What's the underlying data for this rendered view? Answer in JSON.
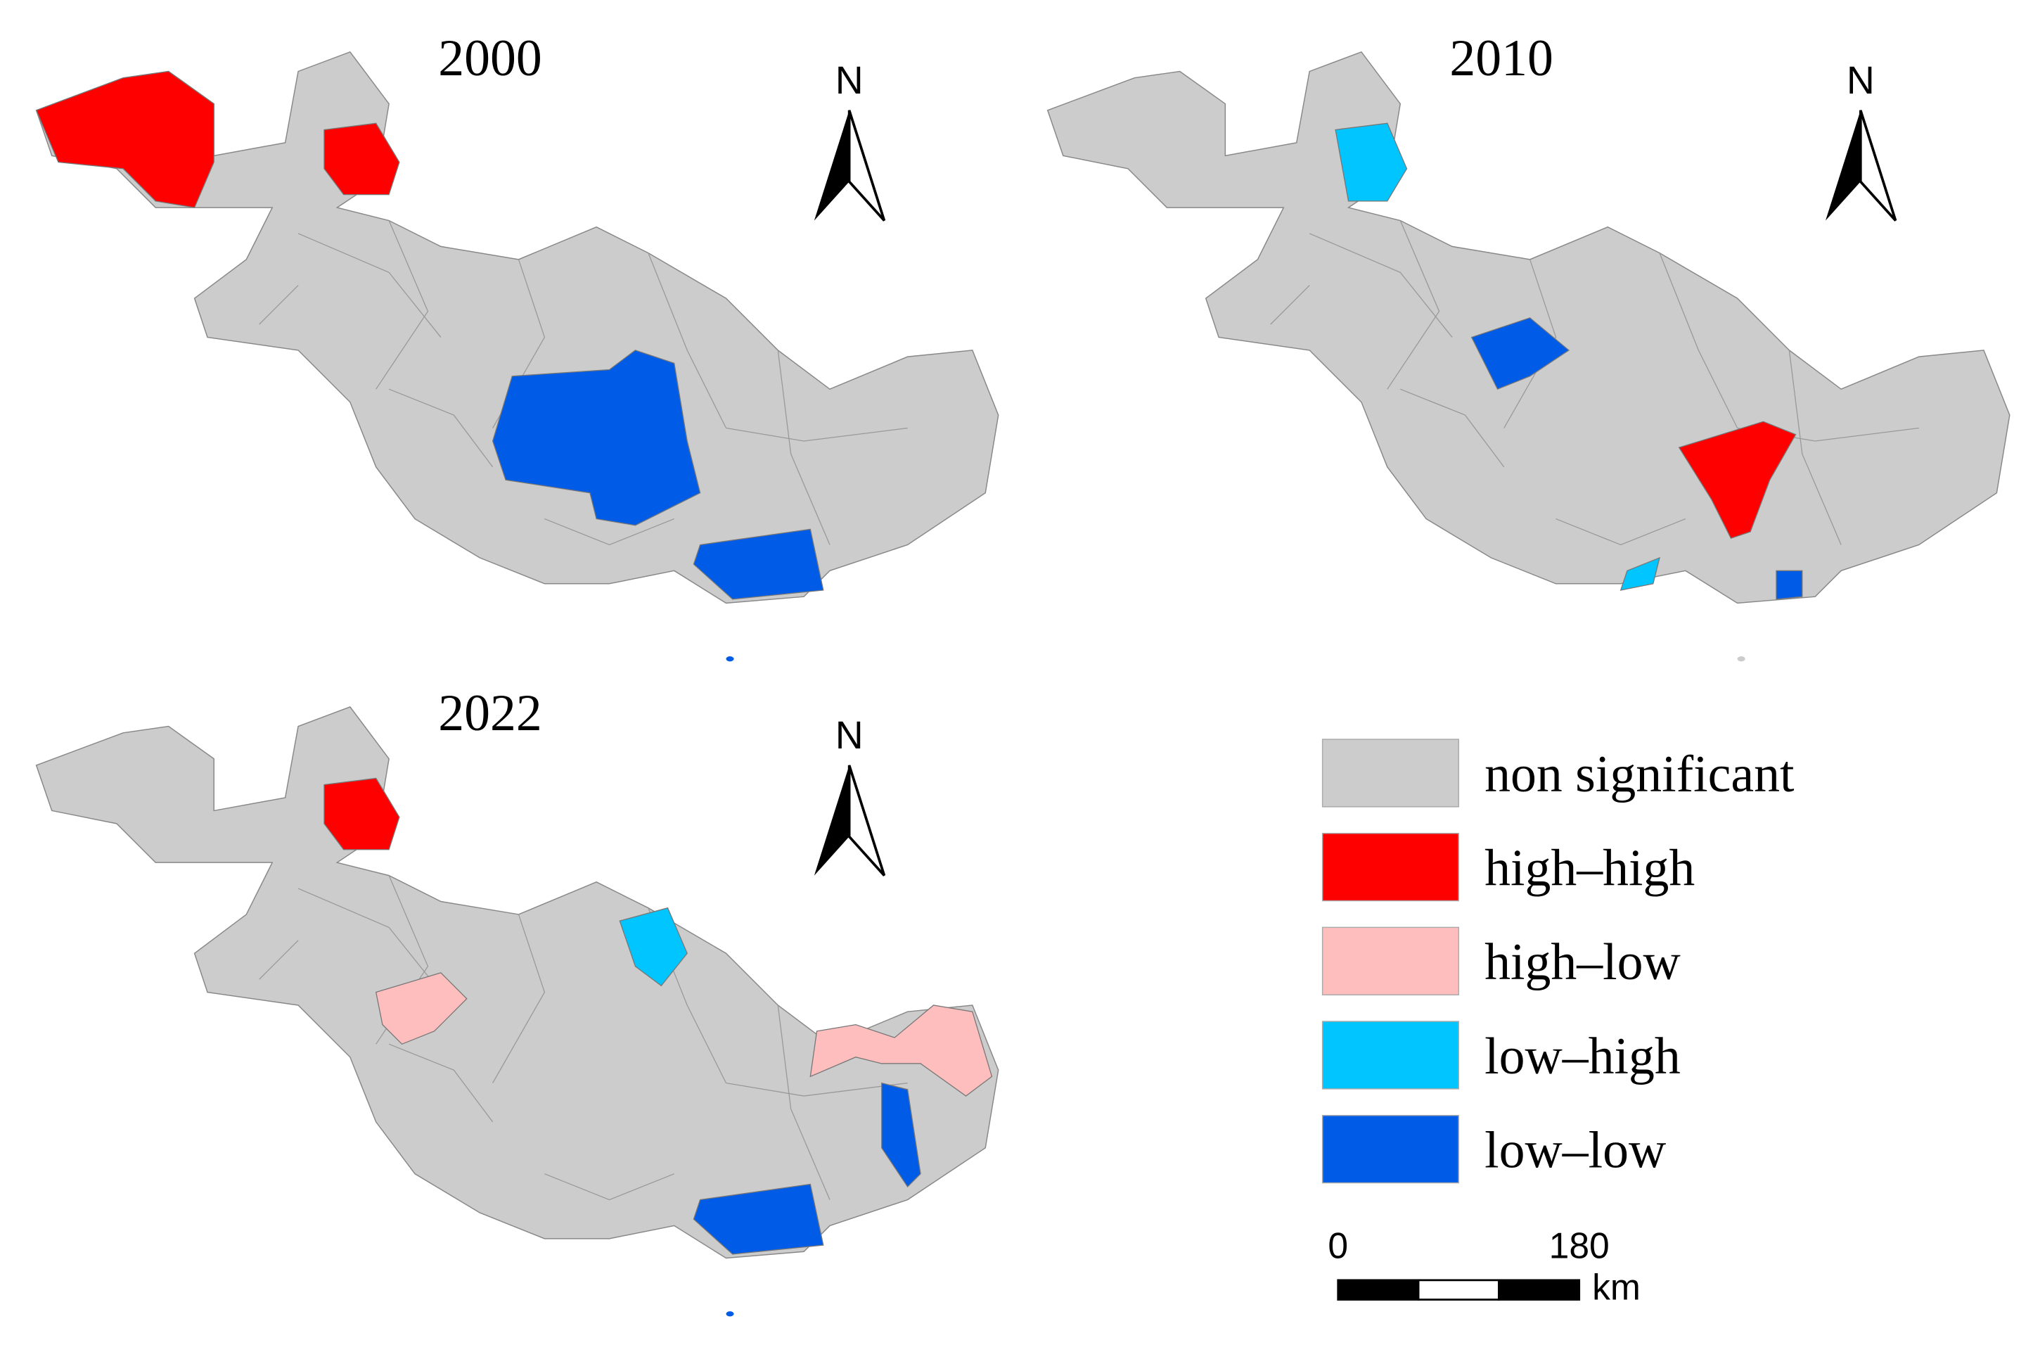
{
  "panels": [
    {
      "title": "2000",
      "north": "N"
    },
    {
      "title": "2010",
      "north": "N"
    },
    {
      "title": "2022",
      "north": "N"
    }
  ],
  "legend": [
    {
      "label": "non significant",
      "color": "#cccccc"
    },
    {
      "label": "high–high",
      "color": "#ff0000"
    },
    {
      "label": "high–low",
      "color": "#ffbebe"
    },
    {
      "label": "low–high",
      "color": "#00c5ff"
    },
    {
      "label": "low–low",
      "color": "#005ce6"
    }
  ],
  "scale_bar": {
    "ticks": [
      0,
      180
    ],
    "unit": "km"
  }
}
